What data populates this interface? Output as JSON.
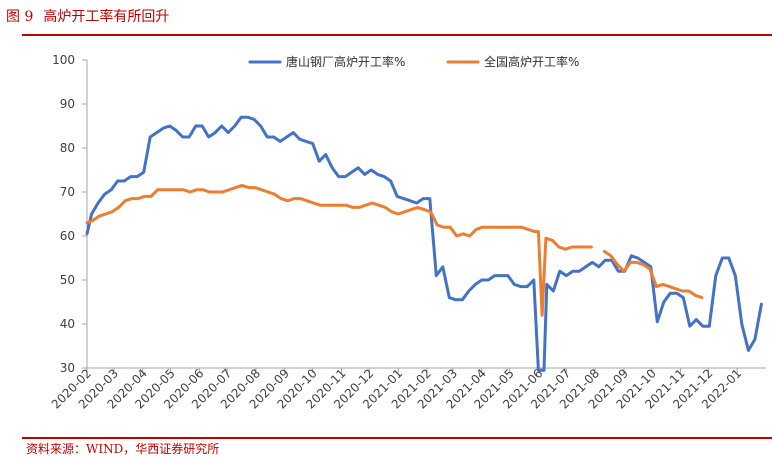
{
  "header": {
    "figure_number": "图 9",
    "title": "高炉开工率有所回升"
  },
  "footer": {
    "source": "资料来源：WIND，华西证券研究所"
  },
  "chart_data": {
    "type": "line",
    "title": "",
    "xlabel": "",
    "ylabel": "",
    "ylim": [
      30,
      100
    ],
    "yticks": [
      30,
      40,
      50,
      60,
      70,
      80,
      90,
      100
    ],
    "xlim": [
      "2020-02",
      "2022-02"
    ],
    "xticks": [
      "2020-02",
      "2020-03",
      "2020-04",
      "2020-05",
      "2020-06",
      "2020-07",
      "2020-08",
      "2020-09",
      "2020-10",
      "2020-11",
      "2020-12",
      "2021-01",
      "2021-02",
      "2021-03",
      "2021-04",
      "2021-05",
      "2021-06",
      "2021-07",
      "2021-08",
      "2021-09",
      "2021-10",
      "2021-11",
      "2021-12",
      "2022-01"
    ],
    "grid": false,
    "legend": "top",
    "series": [
      {
        "name": "唐山钢厂高炉开工率%",
        "color": "#4472c4",
        "points": [
          [
            "2020-02-01",
            60.5
          ],
          [
            "2020-02-06",
            65.0
          ],
          [
            "2020-02-13",
            67.5
          ],
          [
            "2020-02-20",
            69.5
          ],
          [
            "2020-02-27",
            70.5
          ],
          [
            "2020-03-05",
            72.5
          ],
          [
            "2020-03-12",
            72.5
          ],
          [
            "2020-03-19",
            73.5
          ],
          [
            "2020-03-26",
            73.5
          ],
          [
            "2020-04-02",
            74.5
          ],
          [
            "2020-04-09",
            82.5
          ],
          [
            "2020-04-16",
            83.5
          ],
          [
            "2020-04-23",
            84.5
          ],
          [
            "2020-04-30",
            85.0
          ],
          [
            "2020-05-07",
            84.0
          ],
          [
            "2020-05-14",
            82.5
          ],
          [
            "2020-05-21",
            82.5
          ],
          [
            "2020-05-28",
            85.0
          ],
          [
            "2020-06-04",
            85.0
          ],
          [
            "2020-06-11",
            82.5
          ],
          [
            "2020-06-18",
            83.5
          ],
          [
            "2020-06-25",
            85.0
          ],
          [
            "2020-07-02",
            83.5
          ],
          [
            "2020-07-09",
            85.0
          ],
          [
            "2020-07-16",
            87.0
          ],
          [
            "2020-07-23",
            87.0
          ],
          [
            "2020-07-30",
            86.5
          ],
          [
            "2020-08-06",
            85.0
          ],
          [
            "2020-08-13",
            82.5
          ],
          [
            "2020-08-20",
            82.5
          ],
          [
            "2020-08-27",
            81.5
          ],
          [
            "2020-09-03",
            82.5
          ],
          [
            "2020-09-10",
            83.5
          ],
          [
            "2020-09-17",
            82.0
          ],
          [
            "2020-09-24",
            81.5
          ],
          [
            "2020-10-01",
            81.0
          ],
          [
            "2020-10-08",
            77.0
          ],
          [
            "2020-10-15",
            78.5
          ],
          [
            "2020-10-22",
            75.5
          ],
          [
            "2020-10-29",
            73.5
          ],
          [
            "2020-11-05",
            73.5
          ],
          [
            "2020-11-12",
            74.5
          ],
          [
            "2020-11-19",
            75.5
          ],
          [
            "2020-11-26",
            74.0
          ],
          [
            "2020-12-03",
            75.0
          ],
          [
            "2020-12-10",
            74.0
          ],
          [
            "2020-12-17",
            73.5
          ],
          [
            "2020-12-24",
            72.5
          ],
          [
            "2020-12-31",
            69.0
          ],
          [
            "2021-01-07",
            68.5
          ],
          [
            "2021-01-14",
            68.0
          ],
          [
            "2021-01-21",
            67.5
          ],
          [
            "2021-01-28",
            68.5
          ],
          [
            "2021-02-04",
            68.5
          ],
          [
            "2021-02-11",
            51.0
          ],
          [
            "2021-02-18",
            53.0
          ],
          [
            "2021-02-25",
            46.0
          ],
          [
            "2021-03-04",
            45.5
          ],
          [
            "2021-03-11",
            45.5
          ],
          [
            "2021-03-18",
            47.5
          ],
          [
            "2021-03-25",
            49.0
          ],
          [
            "2021-04-01",
            50.0
          ],
          [
            "2021-04-08",
            50.0
          ],
          [
            "2021-04-15",
            51.0
          ],
          [
            "2021-04-22",
            51.0
          ],
          [
            "2021-04-29",
            51.0
          ],
          [
            "2021-05-06",
            49.0
          ],
          [
            "2021-05-13",
            48.5
          ],
          [
            "2021-05-20",
            48.5
          ],
          [
            "2021-05-27",
            50.0
          ],
          [
            "2021-06-01",
            29.5
          ],
          [
            "2021-06-07",
            29.5
          ],
          [
            "2021-06-10",
            49.0
          ],
          [
            "2021-06-17",
            47.5
          ],
          [
            "2021-06-24",
            52.0
          ],
          [
            "2021-07-01",
            51.0
          ],
          [
            "2021-07-08",
            52.0
          ],
          [
            "2021-07-15",
            52.0
          ],
          [
            "2021-07-22",
            53.0
          ],
          [
            "2021-07-29",
            54.0
          ],
          [
            "2021-08-05",
            53.0
          ],
          [
            "2021-08-12",
            54.5
          ],
          [
            "2021-08-19",
            54.5
          ],
          [
            "2021-08-26",
            52.0
          ],
          [
            "2021-09-02",
            52.0
          ],
          [
            "2021-09-09",
            55.5
          ],
          [
            "2021-09-16",
            55.0
          ],
          [
            "2021-09-23",
            54.0
          ],
          [
            "2021-09-30",
            53.0
          ],
          [
            "2021-10-07",
            40.5
          ],
          [
            "2021-10-14",
            45.0
          ],
          [
            "2021-10-21",
            47.0
          ],
          [
            "2021-10-28",
            47.0
          ],
          [
            "2021-11-04",
            46.0
          ],
          [
            "2021-11-11",
            39.5
          ],
          [
            "2021-11-18",
            41.0
          ],
          [
            "2021-11-25",
            39.5
          ],
          [
            "2021-12-02",
            39.5
          ],
          [
            "2021-12-09",
            51.0
          ],
          [
            "2021-12-16",
            55.0
          ],
          [
            "2021-12-23",
            55.0
          ],
          [
            "2021-12-30",
            51.0
          ],
          [
            "2022-01-06",
            40.0
          ],
          [
            "2022-01-13",
            34.0
          ],
          [
            "2022-01-20",
            36.5
          ],
          [
            "2022-01-27",
            44.5
          ]
        ]
      },
      {
        "name": "全国高炉开工率%",
        "color": "#ed7d31",
        "points": [
          [
            "2020-02-01",
            63.0
          ],
          [
            "2020-02-07",
            63.5
          ],
          [
            "2020-02-14",
            64.5
          ],
          [
            "2020-02-21",
            65.0
          ],
          [
            "2020-02-28",
            65.5
          ],
          [
            "2020-03-06",
            66.5
          ],
          [
            "2020-03-13",
            68.0
          ],
          [
            "2020-03-20",
            68.5
          ],
          [
            "2020-03-27",
            68.5
          ],
          [
            "2020-04-03",
            69.0
          ],
          [
            "2020-04-10",
            69.0
          ],
          [
            "2020-04-17",
            70.5
          ],
          [
            "2020-04-24",
            70.5
          ],
          [
            "2020-05-01",
            70.5
          ],
          [
            "2020-05-08",
            70.5
          ],
          [
            "2020-05-15",
            70.5
          ],
          [
            "2020-05-22",
            70.0
          ],
          [
            "2020-05-29",
            70.5
          ],
          [
            "2020-06-05",
            70.5
          ],
          [
            "2020-06-12",
            70.0
          ],
          [
            "2020-06-19",
            70.0
          ],
          [
            "2020-06-26",
            70.0
          ],
          [
            "2020-07-03",
            70.5
          ],
          [
            "2020-07-10",
            71.0
          ],
          [
            "2020-07-17",
            71.5
          ],
          [
            "2020-07-24",
            71.0
          ],
          [
            "2020-07-31",
            71.0
          ],
          [
            "2020-08-07",
            70.5
          ],
          [
            "2020-08-14",
            70.0
          ],
          [
            "2020-08-21",
            69.5
          ],
          [
            "2020-08-28",
            68.5
          ],
          [
            "2020-09-04",
            68.0
          ],
          [
            "2020-09-11",
            68.5
          ],
          [
            "2020-09-18",
            68.5
          ],
          [
            "2020-09-25",
            68.0
          ],
          [
            "2020-10-02",
            67.5
          ],
          [
            "2020-10-09",
            67.0
          ],
          [
            "2020-10-16",
            67.0
          ],
          [
            "2020-10-23",
            67.0
          ],
          [
            "2020-10-30",
            67.0
          ],
          [
            "2020-11-06",
            67.0
          ],
          [
            "2020-11-13",
            66.5
          ],
          [
            "2020-11-20",
            66.5
          ],
          [
            "2020-11-27",
            67.0
          ],
          [
            "2020-12-04",
            67.5
          ],
          [
            "2020-12-11",
            67.0
          ],
          [
            "2020-12-18",
            66.5
          ],
          [
            "2020-12-25",
            65.5
          ],
          [
            "2021-01-01",
            65.0
          ],
          [
            "2021-01-08",
            65.5
          ],
          [
            "2021-01-15",
            66.0
          ],
          [
            "2021-01-22",
            66.5
          ],
          [
            "2021-01-29",
            66.0
          ],
          [
            "2021-02-05",
            65.5
          ],
          [
            "2021-02-12",
            62.5
          ],
          [
            "2021-02-19",
            62.0
          ],
          [
            "2021-02-26",
            62.0
          ],
          [
            "2021-03-05",
            60.0
          ],
          [
            "2021-03-12",
            60.5
          ],
          [
            "2021-03-19",
            60.0
          ],
          [
            "2021-03-26",
            61.5
          ],
          [
            "2021-04-02",
            62.0
          ],
          [
            "2021-04-09",
            62.0
          ],
          [
            "2021-04-16",
            62.0
          ],
          [
            "2021-04-23",
            62.0
          ],
          [
            "2021-04-30",
            62.0
          ],
          [
            "2021-05-07",
            62.0
          ],
          [
            "2021-05-14",
            62.0
          ],
          [
            "2021-05-21",
            61.5
          ],
          [
            "2021-05-28",
            61.0
          ],
          [
            "2021-06-01",
            61.0
          ],
          [
            "2021-06-05",
            42.0
          ],
          [
            "2021-06-09",
            59.5
          ],
          [
            "2021-06-16",
            59.0
          ],
          [
            "2021-06-23",
            57.5
          ],
          [
            "2021-06-30",
            57.0
          ],
          [
            "2021-07-07",
            57.5
          ],
          [
            "2021-07-14",
            57.5
          ],
          [
            "2021-07-21",
            57.5
          ],
          [
            "2021-07-28",
            57.5
          ],
          null,
          [
            "2021-08-11",
            56.5
          ],
          [
            "2021-08-18",
            55.5
          ],
          [
            "2021-08-25",
            53.5
          ],
          [
            "2021-09-01",
            52.0
          ],
          [
            "2021-09-08",
            54.0
          ],
          [
            "2021-09-15",
            54.0
          ],
          [
            "2021-09-22",
            53.5
          ],
          [
            "2021-09-29",
            52.5
          ],
          [
            "2021-10-06",
            48.5
          ],
          [
            "2021-10-13",
            49.0
          ],
          [
            "2021-10-20",
            48.5
          ],
          [
            "2021-10-27",
            48.0
          ],
          [
            "2021-11-03",
            47.5
          ],
          [
            "2021-11-10",
            47.5
          ],
          [
            "2021-11-17",
            46.5
          ],
          [
            "2021-11-24",
            46.0
          ]
        ]
      }
    ]
  }
}
